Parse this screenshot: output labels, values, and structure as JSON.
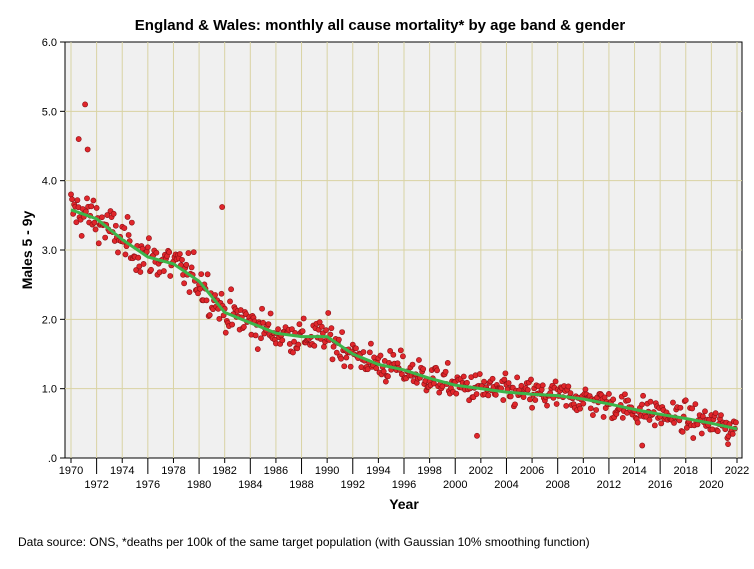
{
  "chart_data": {
    "type": "scatter",
    "title": "England & Wales: monthly all cause mortality* by age band & gender",
    "xlabel": "Year",
    "ylabel": "Males 5 - 9y",
    "xlim": [
      1970,
      2022
    ],
    "ylim": [
      0,
      6
    ],
    "x_ticks": [
      "1970",
      "1972",
      "1974",
      "1976",
      "1978",
      "1980",
      "1982",
      "1984",
      "1986",
      "1988",
      "1990",
      "1992",
      "1994",
      "1996",
      "1998",
      "2000",
      "2002",
      "2004",
      "2006",
      "2008",
      "2010",
      "2012",
      "2014",
      "2016",
      "2018",
      "2020",
      "2022"
    ],
    "y_ticks": [
      ".0",
      "1.0",
      "2.0",
      "3.0",
      "4.0",
      "5.0",
      "6.0"
    ],
    "grid": true,
    "series": [
      {
        "name": "monthly deaths per 100k",
        "kind": "points",
        "color": "#e0262b",
        "note_points": "monthly observations Jan 1970 to 2022, scattered around the smoothed trend",
        "scatter_sd": 0.28,
        "outliers": [
          [
            1970.6,
            4.6
          ],
          [
            1971.1,
            5.1
          ],
          [
            1971.3,
            4.45
          ],
          [
            1981.8,
            3.62
          ],
          [
            2001.7,
            0.32
          ],
          [
            2014.6,
            0.18
          ],
          [
            2021.3,
            0.2
          ]
        ]
      },
      {
        "name": "Gaussian 10% smoothing",
        "kind": "line",
        "color": "#3cb54a",
        "x": [
          1970,
          1972,
          1974,
          1976,
          1978,
          1980,
          1982,
          1984,
          1986,
          1988,
          1990,
          1992,
          1994,
          1996,
          1998,
          2000,
          2002,
          2004,
          2006,
          2008,
          2010,
          2012,
          2014,
          2016,
          2018,
          2020,
          2022
        ],
        "y": [
          3.58,
          3.45,
          3.15,
          2.9,
          2.8,
          2.55,
          2.1,
          1.95,
          1.8,
          1.75,
          1.75,
          1.5,
          1.35,
          1.27,
          1.15,
          1.05,
          1.0,
          0.95,
          0.92,
          0.9,
          0.85,
          0.78,
          0.7,
          0.63,
          0.57,
          0.5,
          0.42
        ]
      }
    ],
    "caption": "Data source: ONS, *deaths per 100k of the same target population (with Gaussian 10% smoothing function)"
  }
}
